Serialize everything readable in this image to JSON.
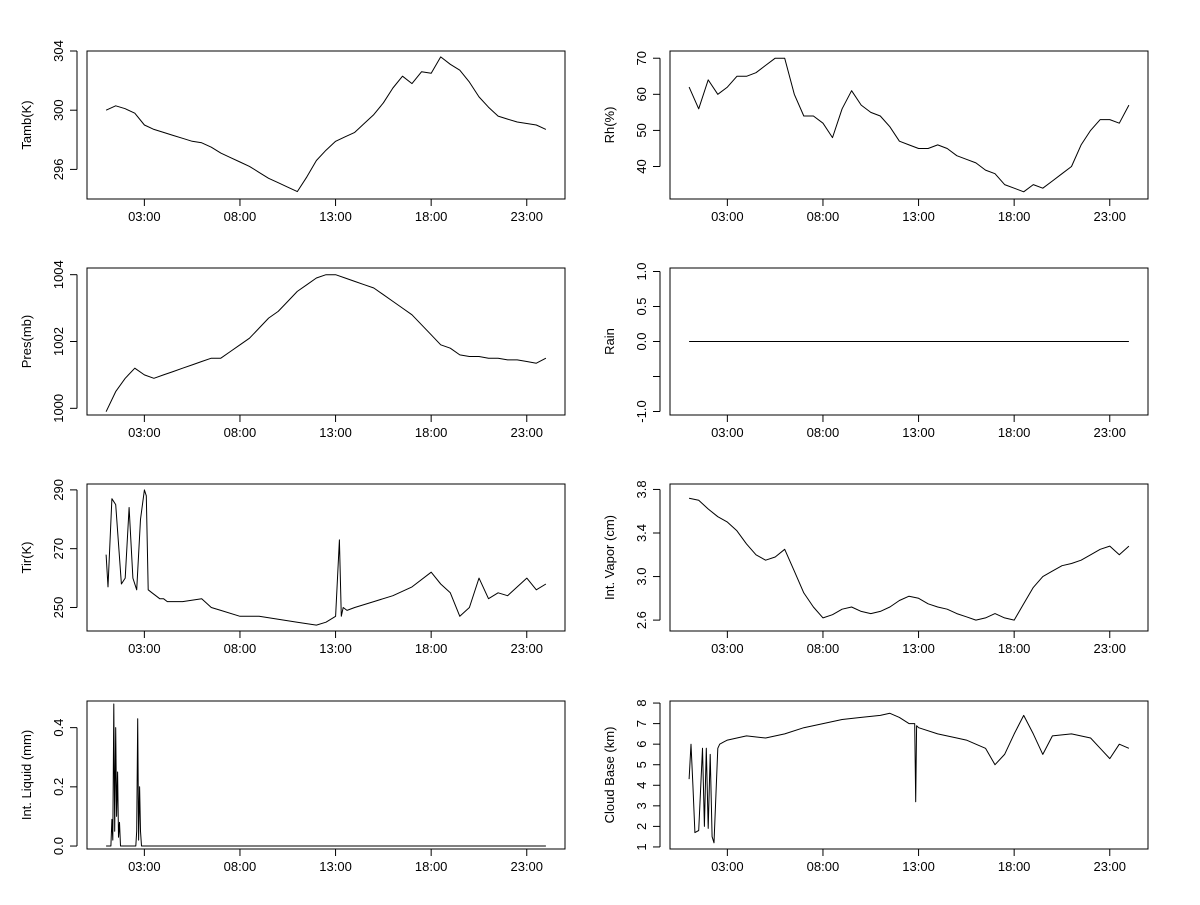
{
  "chart_data": [
    {
      "id": "tamb",
      "type": "line",
      "ylabel": "Tamb(K)",
      "xlim": [
        0,
        25
      ],
      "ylim": [
        294,
        304
      ],
      "xticks": [
        "03:00",
        "08:00",
        "13:00",
        "18:00",
        "23:00"
      ],
      "yticks": [
        296,
        300,
        304
      ],
      "ytick_labels": [
        "296",
        "300",
        "304"
      ],
      "x": [
        1,
        1.5,
        2,
        2.5,
        3,
        3.5,
        4,
        4.5,
        5,
        5.5,
        6,
        6.5,
        7,
        7.5,
        8,
        8.5,
        9,
        9.5,
        10,
        10.5,
        11,
        11.5,
        12,
        12.5,
        13,
        13.5,
        14,
        14.5,
        15,
        15.5,
        16,
        16.5,
        17,
        17.5,
        18,
        18.5,
        19,
        19.5,
        20,
        20.5,
        21,
        21.5,
        22,
        22.5,
        23,
        23.5,
        24
      ],
      "y": [
        300,
        300.3,
        300.1,
        299.8,
        299,
        298.7,
        298.5,
        298.3,
        298.1,
        297.9,
        297.8,
        297.5,
        297.1,
        296.8,
        296.5,
        296.2,
        295.8,
        295.4,
        295.1,
        294.8,
        294.5,
        295.5,
        296.6,
        297.3,
        297.9,
        298.2,
        298.5,
        299.1,
        299.7,
        300.5,
        301.5,
        302.3,
        301.8,
        302.6,
        302.5,
        303.6,
        303.1,
        302.7,
        301.9,
        300.9,
        300.2,
        299.6,
        299.4,
        299.2,
        299.1,
        299,
        298.7
      ]
    },
    {
      "id": "rh",
      "type": "line",
      "ylabel": "Rh(%)",
      "xlim": [
        0,
        25
      ],
      "ylim": [
        31,
        72
      ],
      "xticks": [
        "03:00",
        "08:00",
        "13:00",
        "18:00",
        "23:00"
      ],
      "yticks": [
        40,
        50,
        60,
        70
      ],
      "ytick_labels": [
        "40",
        "50",
        "60",
        "70"
      ],
      "x": [
        1,
        1.5,
        2,
        2.5,
        3,
        3.5,
        4,
        4.5,
        5,
        5.5,
        6,
        6.5,
        7,
        7.5,
        8,
        8.5,
        9,
        9.5,
        10,
        10.5,
        11,
        11.5,
        12,
        12.5,
        13,
        13.5,
        14,
        14.5,
        15,
        15.5,
        16,
        16.5,
        17,
        17.5,
        18,
        18.5,
        19,
        19.5,
        20,
        20.5,
        21,
        21.5,
        22,
        22.5,
        23,
        23.5,
        24
      ],
      "y": [
        62,
        56,
        64,
        60,
        62,
        65,
        65,
        66,
        68,
        70,
        70,
        60,
        54,
        54,
        52,
        48,
        56,
        61,
        57,
        55,
        54,
        51,
        47,
        46,
        45,
        45,
        46,
        45,
        43,
        42,
        41,
        39,
        38,
        35,
        34,
        33,
        35,
        34,
        36,
        38,
        40,
        46,
        50,
        53,
        53,
        52,
        57
      ]
    },
    {
      "id": "pres",
      "type": "line",
      "ylabel": "Pres(mb)",
      "xlim": [
        0,
        25
      ],
      "ylim": [
        999.8,
        1004.2
      ],
      "xticks": [
        "03:00",
        "08:00",
        "13:00",
        "18:00",
        "23:00"
      ],
      "yticks": [
        1000,
        1002,
        1004
      ],
      "ytick_labels": [
        "1000",
        "1002",
        "1004"
      ],
      "x": [
        1,
        1.5,
        2,
        2.5,
        3,
        3.5,
        4,
        4.5,
        5,
        5.5,
        6,
        6.5,
        7,
        7.5,
        8,
        8.5,
        9,
        9.5,
        10,
        10.5,
        11,
        11.5,
        12,
        12.5,
        13,
        13.5,
        14,
        14.5,
        15,
        15.5,
        16,
        16.5,
        17,
        17.5,
        18,
        18.5,
        19,
        19.5,
        20,
        20.5,
        21,
        21.5,
        22,
        22.5,
        23,
        23.5,
        24
      ],
      "y": [
        999.9,
        1000.5,
        1000.9,
        1001.2,
        1001.0,
        1000.9,
        1001.0,
        1001.1,
        1001.2,
        1001.3,
        1001.4,
        1001.5,
        1001.5,
        1001.7,
        1001.9,
        1002.1,
        1002.4,
        1002.7,
        1002.9,
        1003.2,
        1003.5,
        1003.7,
        1003.9,
        1004.0,
        1004.0,
        1003.9,
        1003.8,
        1003.7,
        1003.6,
        1003.4,
        1003.2,
        1003.0,
        1002.8,
        1002.5,
        1002.2,
        1001.9,
        1001.8,
        1001.6,
        1001.55,
        1001.55,
        1001.5,
        1001.5,
        1001.45,
        1001.45,
        1001.4,
        1001.35,
        1001.5
      ]
    },
    {
      "id": "rain",
      "type": "line",
      "ylabel": "Rain",
      "xlim": [
        0,
        25
      ],
      "ylim": [
        -1.05,
        1.05
      ],
      "xticks": [
        "03:00",
        "08:00",
        "13:00",
        "18:00",
        "23:00"
      ],
      "yticks": [
        -1.0,
        -0.5,
        0.0,
        0.5,
        1.0
      ],
      "ytick_labels": [
        "-1.0",
        "",
        "0.0",
        "0.5",
        "1.0"
      ],
      "x": [
        1,
        24
      ],
      "y": [
        0,
        0
      ]
    },
    {
      "id": "tir",
      "type": "line",
      "ylabel": "Tir(K)",
      "xlim": [
        0,
        25
      ],
      "ylim": [
        242,
        292
      ],
      "xticks": [
        "03:00",
        "08:00",
        "13:00",
        "18:00",
        "23:00"
      ],
      "yticks": [
        250,
        270,
        290
      ],
      "ytick_labels": [
        "250",
        "270",
        "290"
      ],
      "x": [
        1,
        1.1,
        1.3,
        1.5,
        1.8,
        2,
        2.2,
        2.4,
        2.6,
        2.8,
        3,
        3.1,
        3.2,
        3.4,
        3.6,
        3.8,
        4,
        4.2,
        4.5,
        5,
        6,
        6.5,
        7,
        8,
        9,
        10,
        11,
        12,
        12.5,
        13,
        13.2,
        13.3,
        13.4,
        13.6,
        14,
        15,
        16,
        17,
        18,
        18.5,
        19,
        19.5,
        20,
        20.5,
        21,
        21.5,
        22,
        23,
        23.5,
        24
      ],
      "y": [
        268,
        257,
        287,
        285,
        258,
        260,
        284,
        260,
        256,
        280,
        290,
        288,
        256,
        255,
        254,
        253,
        253,
        252,
        252,
        252,
        253,
        250,
        249,
        247,
        247,
        246,
        245,
        244,
        245,
        247,
        273,
        247,
        250,
        249,
        250,
        252,
        254,
        257,
        262,
        258,
        255,
        247,
        250,
        260,
        253,
        255,
        254,
        260,
        256,
        258
      ]
    },
    {
      "id": "vapor",
      "type": "line",
      "ylabel": "Int. Vapor (cm)",
      "xlim": [
        0,
        25
      ],
      "ylim": [
        2.5,
        3.85
      ],
      "xticks": [
        "03:00",
        "08:00",
        "13:00",
        "18:00",
        "23:00"
      ],
      "yticks": [
        2.6,
        3.0,
        3.4,
        3.8
      ],
      "ytick_labels": [
        "2.6",
        "3.0",
        "3.4",
        "3.8"
      ],
      "x": [
        1,
        1.5,
        2,
        2.5,
        3,
        3.5,
        4,
        4.5,
        5,
        5.5,
        6,
        6.5,
        7,
        7.5,
        8,
        8.5,
        9,
        9.5,
        10,
        10.5,
        11,
        11.5,
        12,
        12.5,
        13,
        13.5,
        14,
        14.5,
        15,
        15.5,
        16,
        16.5,
        17,
        17.5,
        18,
        18.5,
        19,
        19.5,
        20,
        20.5,
        21,
        21.5,
        22,
        22.5,
        23,
        23.5,
        24
      ],
      "y": [
        3.72,
        3.7,
        3.62,
        3.55,
        3.5,
        3.42,
        3.3,
        3.2,
        3.15,
        3.18,
        3.25,
        3.05,
        2.85,
        2.72,
        2.62,
        2.65,
        2.7,
        2.72,
        2.68,
        2.66,
        2.68,
        2.72,
        2.78,
        2.82,
        2.8,
        2.75,
        2.72,
        2.7,
        2.66,
        2.63,
        2.6,
        2.62,
        2.66,
        2.62,
        2.6,
        2.75,
        2.9,
        3.0,
        3.05,
        3.1,
        3.12,
        3.15,
        3.2,
        3.25,
        3.28,
        3.2,
        3.28
      ]
    },
    {
      "id": "liquid",
      "type": "line",
      "ylabel": "Int. Liquid (mm)",
      "xlim": [
        0,
        25
      ],
      "ylim": [
        -0.01,
        0.49
      ],
      "xticks": [
        "03:00",
        "08:00",
        "13:00",
        "18:00",
        "23:00"
      ],
      "yticks": [
        0.0,
        0.2,
        0.4
      ],
      "ytick_labels": [
        "0.0",
        "0.2",
        "0.4"
      ],
      "x": [
        1,
        1.25,
        1.3,
        1.35,
        1.4,
        1.45,
        1.5,
        1.55,
        1.6,
        1.65,
        1.7,
        1.75,
        2,
        2.55,
        2.6,
        2.65,
        2.7,
        2.75,
        2.8,
        2.85,
        24
      ],
      "y": [
        0,
        0,
        0.09,
        0.02,
        0.48,
        0.05,
        0.4,
        0.1,
        0.25,
        0.03,
        0.08,
        0,
        0,
        0,
        0.05,
        0.43,
        0.02,
        0.2,
        0.05,
        0,
        0
      ]
    },
    {
      "id": "cloudbase",
      "type": "line",
      "ylabel": "Cloud Base (km)",
      "xlim": [
        0,
        25
      ],
      "ylim": [
        0.9,
        8.1
      ],
      "xticks": [
        "03:00",
        "08:00",
        "13:00",
        "18:00",
        "23:00"
      ],
      "yticks": [
        1,
        2,
        3,
        4,
        5,
        6,
        7,
        8
      ],
      "ytick_labels": [
        "1",
        "2",
        "3",
        "4",
        "5",
        "6",
        "7",
        "8"
      ],
      "x": [
        1,
        1.1,
        1.2,
        1.3,
        1.5,
        1.7,
        1.8,
        1.9,
        2,
        2.1,
        2.2,
        2.3,
        2.5,
        2.6,
        2.8,
        3,
        3.5,
        4,
        5,
        6,
        7,
        8,
        9,
        10,
        11,
        11.5,
        12,
        12.5,
        12.8,
        12.85,
        12.9,
        13,
        14,
        15,
        15.5,
        16,
        16.5,
        17,
        17.5,
        18,
        18.5,
        19,
        19.5,
        20,
        21,
        22,
        22.5,
        23,
        23.5,
        24
      ],
      "y": [
        4.3,
        6.0,
        4.0,
        1.7,
        1.8,
        5.8,
        2.0,
        5.8,
        1.9,
        5.5,
        1.5,
        1.2,
        5.8,
        6.0,
        6.1,
        6.2,
        6.3,
        6.4,
        6.3,
        6.5,
        6.8,
        7.0,
        7.2,
        7.3,
        7.4,
        7.5,
        7.3,
        7.0,
        7.0,
        3.2,
        6.9,
        6.8,
        6.5,
        6.3,
        6.2,
        6.0,
        5.8,
        5.0,
        5.5,
        6.5,
        7.4,
        6.5,
        5.5,
        6.4,
        6.5,
        6.3,
        5.8,
        5.3,
        6.0,
        5.8
      ]
    }
  ]
}
